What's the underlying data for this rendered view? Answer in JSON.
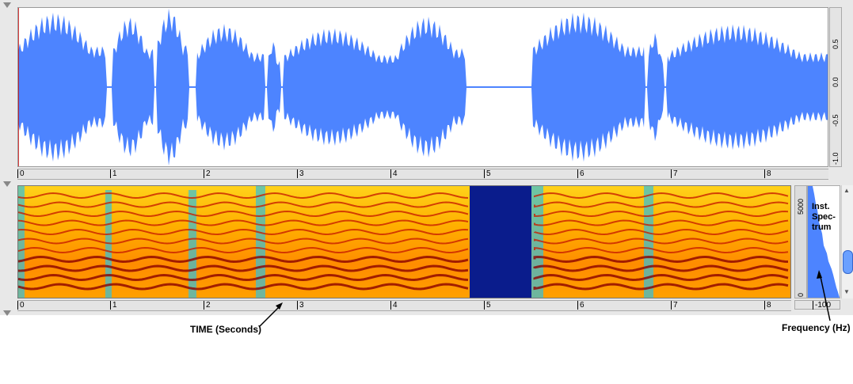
{
  "waveform": {
    "amplitude_ticks": [
      "0.5",
      "0.0",
      "-0.5",
      "-1.0"
    ],
    "color": "#4d84ff"
  },
  "time_ruler": {
    "ticks": [
      "0",
      "1",
      "2",
      "3",
      "4",
      "5",
      "6",
      "7",
      "8"
    ]
  },
  "spectrogram": {
    "frequency_ticks": [
      "5000",
      "0"
    ]
  },
  "inst_spectrum": {
    "label": "Inst. Spec- trum",
    "label_lines": [
      "Inst.",
      "Spec-",
      "trum"
    ],
    "db_label": "-100"
  },
  "annotations": {
    "time": "TIME (Seconds)",
    "frequency": "Frequency (Hz)"
  }
}
